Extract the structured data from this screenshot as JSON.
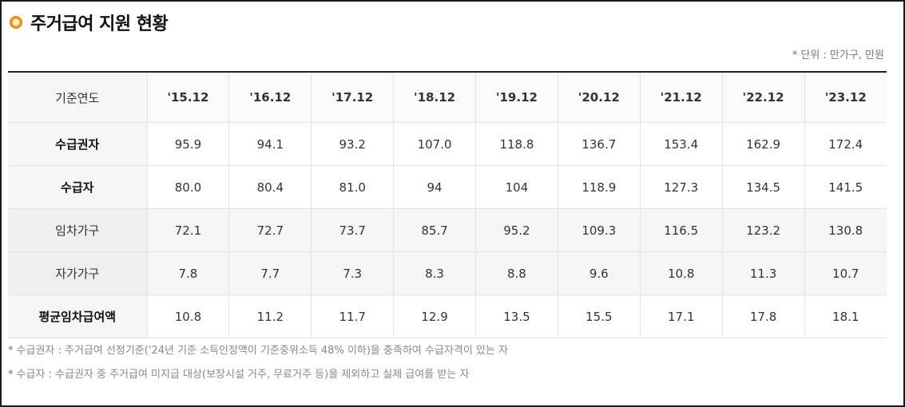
{
  "header": {
    "title": "주거급여 지원 현황",
    "bullet_icon": "circle-bullet-icon",
    "unit_marker": "*",
    "unit_text": "단위 : 만가구, 만원"
  },
  "colors": {
    "accent": "#f28a00",
    "note_marker": "#3a7bd5",
    "header_border": "#222222"
  },
  "chart_data": {
    "type": "table",
    "columns": [
      "기준연도",
      "'15.12",
      "'16.12",
      "'17.12",
      "'18.12",
      "'19.12",
      "'20.12",
      "'21.12",
      "'22.12",
      "'23.12"
    ],
    "rows": [
      {
        "label": "수급권자",
        "values": [
          "95.9",
          "94.1",
          "93.2",
          "107.0",
          "118.8",
          "136.7",
          "153.4",
          "162.9",
          "172.4"
        ]
      },
      {
        "label": "수급자",
        "values": [
          "80.0",
          "80.4",
          "81.0",
          "94",
          "104",
          "118.9",
          "127.3",
          "134.5",
          "141.5"
        ]
      },
      {
        "label": "임차가구",
        "values": [
          "72.1",
          "72.7",
          "73.7",
          "85.7",
          "95.2",
          "109.3",
          "116.5",
          "123.2",
          "130.8"
        ]
      },
      {
        "label": "자가가구",
        "values": [
          "7.8",
          "7.7",
          "7.3",
          "8.3",
          "8.8",
          "9.6",
          "10.8",
          "11.3",
          "10.7"
        ]
      },
      {
        "label": "평균임차급여액",
        "values": [
          "10.8",
          "11.2",
          "11.7",
          "12.9",
          "13.5",
          "15.5",
          "17.1",
          "17.8",
          "18.1"
        ]
      }
    ]
  },
  "notes": [
    {
      "marker": "*",
      "text": "수급권자 : 주거급여 선정기준('24년 기준 소득인정액이 기준중위소득 48% 이하)을 충족하여 수급자격이 있는 자"
    },
    {
      "marker": "*",
      "text": "수급자 : 수급권자 중 주거급여 미지급 대상(보장시설 거주, 무료거주 등)을 제외하고 실제 급여를 받는 자"
    }
  ]
}
